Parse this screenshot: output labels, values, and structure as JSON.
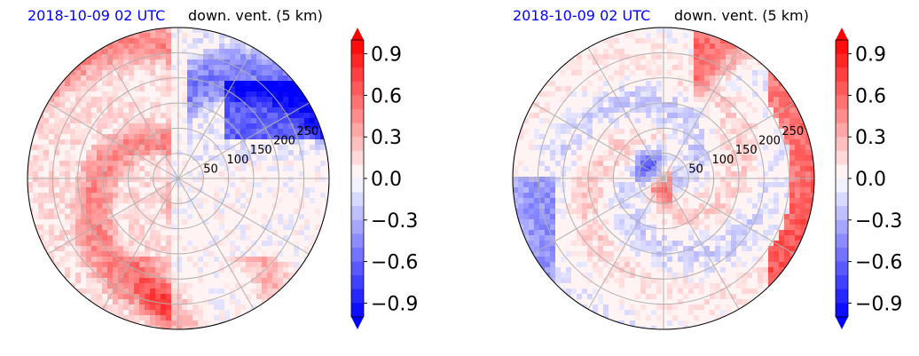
{
  "chart_data": [
    {
      "type": "heatmap",
      "projection": "polar",
      "title_left": "2018-10-09 02 UTC",
      "title_right": "down. vent. (5 km)",
      "radial_ticks": [
        50,
        100,
        150,
        200,
        250
      ],
      "grid": true,
      "colorbar": {
        "ticks": [
          "0.9",
          "0.6",
          "0.3",
          "0.0",
          "−0.3",
          "−0.6",
          "−0.9"
        ],
        "values": [
          0.9,
          0.6,
          0.3,
          0.0,
          -0.3,
          -0.6,
          -0.9
        ],
        "range": [
          -1.0,
          1.0
        ],
        "extend": "both",
        "colors": {
          "negative": "#0000ff",
          "zero": "#ffffff",
          "positive": "#ff0000"
        }
      }
    },
    {
      "type": "heatmap",
      "projection": "polar",
      "title_left": "2018-10-09 02 UTC",
      "title_right": "down. vent. (5 km)",
      "radial_ticks": [
        50,
        100,
        150,
        200,
        250
      ],
      "grid": true,
      "colorbar": {
        "ticks": [
          "0.9",
          "0.6",
          "0.3",
          "0.0",
          "−0.3",
          "−0.6",
          "−0.9"
        ],
        "values": [
          0.9,
          0.6,
          0.3,
          0.0,
          -0.3,
          -0.6,
          -0.9
        ],
        "range": [
          -1.0,
          1.0
        ],
        "extend": "both",
        "colors": {
          "negative": "#0000ff",
          "zero": "#ffffff",
          "positive": "#ff0000"
        }
      }
    }
  ]
}
